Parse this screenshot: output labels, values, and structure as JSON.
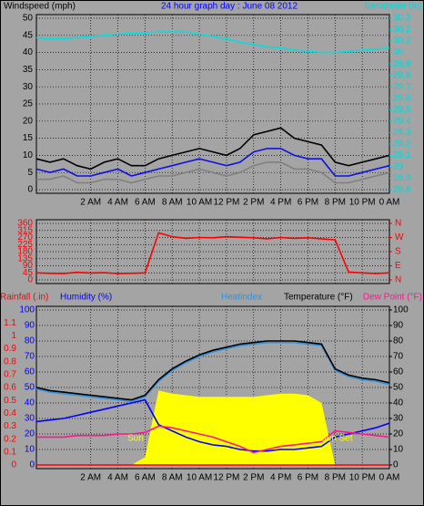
{
  "chart_data": [
    {
      "type": "line",
      "title": "24 hour graph day : June 08 2012",
      "ylabel": "Windspeed (mph)",
      "x": [
        -2,
        -1,
        0,
        1,
        2,
        3,
        4,
        5,
        6,
        7,
        8,
        9,
        10,
        11,
        12,
        13,
        14,
        15,
        16,
        17,
        18,
        19,
        20,
        21,
        22,
        23,
        24
      ],
      "xlim": [
        -2,
        24
      ],
      "xticks": [
        {
          "value": 2,
          "label": "2 AM"
        },
        {
          "value": 4,
          "label": "4 AM"
        },
        {
          "value": 6,
          "label": "6 AM"
        },
        {
          "value": 8,
          "label": "8 AM"
        },
        {
          "value": 10,
          "label": "10 AM"
        },
        {
          "value": 12,
          "label": "12 PM"
        },
        {
          "value": 14,
          "label": "2 PM"
        },
        {
          "value": 16,
          "label": "4 PM"
        },
        {
          "value": 18,
          "label": "6 PM"
        },
        {
          "value": 20,
          "label": "8 PM"
        },
        {
          "value": 22,
          "label": "10 PM"
        },
        {
          "value": 24,
          "label": "0 AM"
        }
      ],
      "ylim": [
        0,
        50
      ],
      "yticks": [
        0,
        5,
        10,
        15,
        20,
        25,
        30,
        35,
        40,
        45,
        50
      ],
      "y2lim": [
        28.8,
        30.3
      ],
      "y2ticks": [
        28.8,
        28.9,
        29,
        29.1,
        29.2,
        29.3,
        29.4,
        29.5,
        29.6,
        29.7,
        29.8,
        29.9,
        30,
        30.1,
        30.2,
        30.3
      ],
      "grid": true,
      "series": [
        {
          "color": "#000000",
          "values": [
            9,
            8,
            9,
            7,
            6,
            8,
            9,
            7,
            7,
            9,
            10,
            11,
            12,
            11,
            10,
            12,
            16,
            17,
            18,
            15,
            14,
            13,
            8,
            7,
            8,
            9,
            10
          ]
        },
        {
          "color": "#808080",
          "values": [
            3,
            3,
            4,
            2,
            2,
            3,
            3,
            2,
            3,
            4,
            4,
            5,
            6,
            5,
            4,
            5,
            7,
            8,
            8,
            6,
            6,
            5,
            2,
            2,
            3,
            4,
            5
          ]
        },
        {
          "color": "#1010e0",
          "values": [
            6,
            5,
            6,
            4,
            4,
            5,
            6,
            4,
            5,
            6,
            7,
            8,
            9,
            8,
            7,
            8,
            11,
            12,
            12,
            10,
            9,
            9,
            4,
            4,
            5,
            6,
            7
          ]
        },
        {
          "name": "Barometer (in)",
          "color": "#00e0e0",
          "axis": "y2",
          "values": [
            30.13,
            30.12,
            30.12,
            30.13,
            30.14,
            30.15,
            30.16,
            30.17,
            30.17,
            30.18,
            30.18,
            30.18,
            30.16,
            30.14,
            30.12,
            30.09,
            30.07,
            30.05,
            30.04,
            30.02,
            30.01,
            30.0,
            30.0,
            30.01,
            30.02,
            30.03,
            30.04
          ]
        }
      ]
    },
    {
      "type": "line",
      "x": [
        -2,
        -1,
        0,
        1,
        2,
        3,
        4,
        5,
        6,
        7,
        8,
        9,
        10,
        11,
        12,
        13,
        14,
        15,
        16,
        17,
        18,
        19,
        20,
        21,
        22,
        23,
        24
      ],
      "xlim": [
        -2,
        24
      ],
      "xticks": [
        2,
        4,
        6,
        8,
        10,
        12,
        14,
        16,
        18,
        20,
        22,
        24
      ],
      "ylim": [
        0,
        360
      ],
      "yticks": [
        0,
        45,
        90,
        135,
        180,
        225,
        270,
        315,
        360
      ],
      "y2lim": [
        0,
        360
      ],
      "y2ticks": [
        {
          "value": 0,
          "label": "N"
        },
        {
          "value": 90,
          "label": "E"
        },
        {
          "value": 180,
          "label": "S"
        },
        {
          "value": 270,
          "label": "W"
        },
        {
          "value": 360,
          "label": "N"
        }
      ],
      "grid": true,
      "series": [
        {
          "color": "#ff0000",
          "values": [
            45,
            42,
            40,
            48,
            44,
            46,
            40,
            42,
            45,
            300,
            275,
            265,
            270,
            268,
            275,
            272,
            268,
            262,
            270,
            265,
            268,
            262,
            255,
            50,
            45,
            40,
            45
          ]
        }
      ]
    },
    {
      "type": "line",
      "x": [
        -2,
        -1,
        0,
        1,
        2,
        3,
        4,
        5,
        6,
        7,
        8,
        9,
        10,
        11,
        12,
        13,
        14,
        15,
        16,
        17,
        18,
        19,
        20,
        21,
        22,
        23,
        24
      ],
      "xlim": [
        -2,
        24
      ],
      "xticks": [
        {
          "value": 2,
          "label": "2 AM"
        },
        {
          "value": 4,
          "label": "4 AM"
        },
        {
          "value": 6,
          "label": "6 AM"
        },
        {
          "value": 8,
          "label": "8 AM"
        },
        {
          "value": 10,
          "label": "10 AM"
        },
        {
          "value": 12,
          "label": "12 PM"
        },
        {
          "value": 14,
          "label": "2 PM"
        },
        {
          "value": 16,
          "label": "4 PM"
        },
        {
          "value": 18,
          "label": "6 PM"
        },
        {
          "value": 20,
          "label": "8 PM"
        },
        {
          "value": 22,
          "label": "10 PM"
        },
        {
          "value": 24,
          "label": "0 AM"
        }
      ],
      "ylim": [
        0,
        100
      ],
      "yticks": [
        0,
        10,
        20,
        30,
        40,
        50,
        60,
        70,
        80,
        90,
        100
      ],
      "y2lim": [
        0,
        100
      ],
      "y2ticks": [
        0,
        10,
        20,
        30,
        40,
        50,
        60,
        70,
        80,
        90,
        100
      ],
      "y3lim": [
        0,
        1.2
      ],
      "y3ticks": [
        0,
        0.1,
        0.2,
        0.3,
        0.4,
        0.5,
        0.6,
        0.7,
        0.8,
        0.9,
        1,
        1.1
      ],
      "grid": true,
      "annotations": [
        "Sun",
        "Sun Set"
      ],
      "series": [
        {
          "type": "area",
          "color": "#ffff00",
          "axis": "y2",
          "values": [
            0,
            0,
            0,
            0,
            0,
            0,
            0,
            0,
            5,
            48,
            46,
            45,
            44,
            44,
            44,
            44,
            44,
            45,
            46,
            46,
            45,
            40,
            0,
            0,
            0,
            0,
            0
          ]
        },
        {
          "name": "Rainfall (.in)",
          "color": "#ff0000",
          "axis": "y3",
          "values": [
            0,
            0,
            0,
            0,
            0,
            0,
            0,
            0,
            0,
            0,
            0,
            0,
            0,
            0,
            0,
            0,
            0,
            0,
            0,
            0,
            0,
            0,
            0,
            0,
            0,
            0,
            0
          ]
        },
        {
          "name": "Humidity (%)",
          "color": "#0000ff",
          "axis": "y",
          "values": [
            28,
            29,
            30,
            32,
            34,
            36,
            38,
            40,
            42,
            26,
            22,
            18,
            15,
            13,
            12,
            10,
            9,
            9,
            10,
            10,
            11,
            12,
            18,
            20,
            22,
            24,
            27
          ]
        },
        {
          "name": "Dew Point (°F)",
          "color": "#ff1493",
          "axis": "y2",
          "values": [
            18,
            18,
            18,
            19,
            19,
            19,
            20,
            20,
            21,
            25,
            24,
            22,
            20,
            18,
            15,
            12,
            8,
            10,
            12,
            13,
            14,
            15,
            22,
            21,
            20,
            19,
            18
          ]
        },
        {
          "name": "Heatindex",
          "color": "#3090e0",
          "axis": "y2",
          "values": [
            49,
            47,
            46,
            45,
            44,
            43,
            42,
            41,
            44,
            54,
            61,
            66,
            70,
            73,
            75,
            77,
            78,
            79,
            79,
            79,
            78,
            77,
            61,
            57,
            55,
            54,
            52
          ]
        },
        {
          "name": "Temperature (°F)",
          "color": "#000000",
          "axis": "y2",
          "values": [
            50,
            48,
            47,
            46,
            45,
            44,
            43,
            42,
            45,
            55,
            62,
            67,
            71,
            74,
            76,
            78,
            79,
            80,
            80,
            80,
            79,
            78,
            62,
            58,
            56,
            55,
            53
          ]
        }
      ]
    }
  ]
}
